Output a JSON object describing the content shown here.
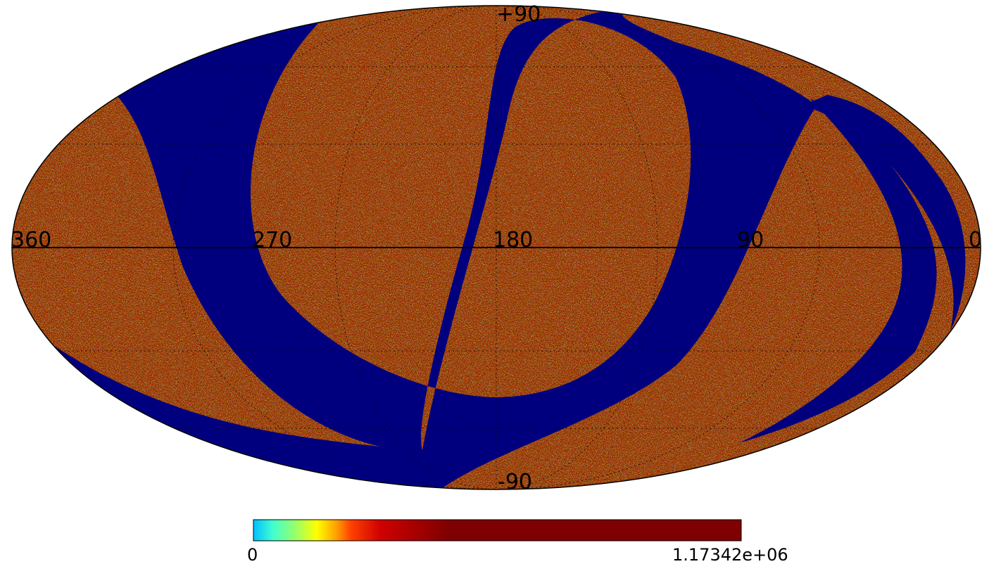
{
  "projection": "mollweide",
  "map": {
    "masked_color": "#00007f",
    "labels": {
      "lat_top": "+90",
      "lat_bottom": "-90",
      "lon": [
        "360",
        "270",
        "180",
        "90",
        "0"
      ]
    },
    "graticule": "dotted"
  },
  "colorbar": {
    "min_label": "0",
    "max_label": "1.17342e+06",
    "stops": [
      "#00bfff",
      "#40ffd0",
      "#a0ff60",
      "#ffff00",
      "#ffa000",
      "#ff4000",
      "#d00000",
      "#7f0000"
    ]
  }
}
